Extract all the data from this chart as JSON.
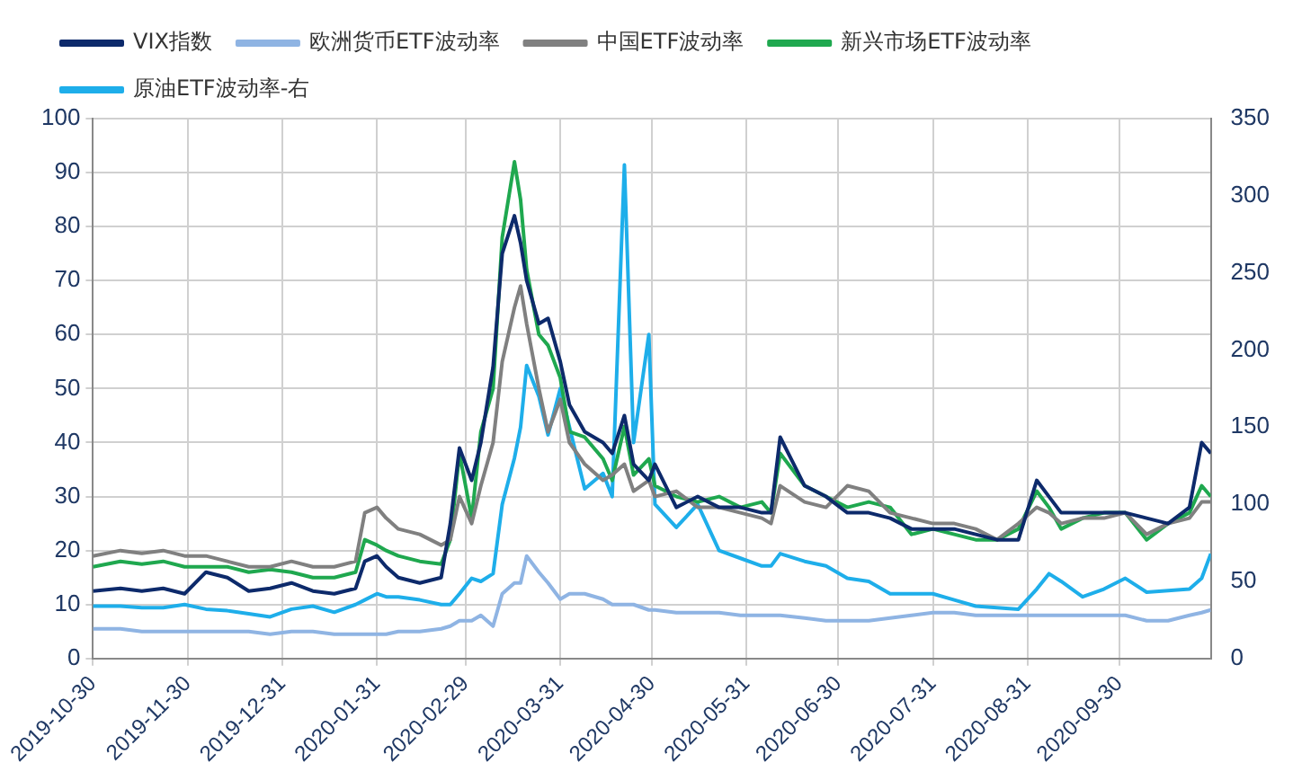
{
  "chart_data": {
    "type": "line",
    "legend": "top",
    "grid": true,
    "marker": "none",
    "line_style": "solid",
    "x": [
      "2019-10-30",
      "2019-11-08",
      "2019-11-15",
      "2019-11-22",
      "2019-11-29",
      "2019-12-06",
      "2019-12-13",
      "2019-12-20",
      "2019-12-27",
      "2020-01-03",
      "2020-01-10",
      "2020-01-17",
      "2020-01-24",
      "2020-01-27",
      "2020-01-31",
      "2020-02-03",
      "2020-02-07",
      "2020-02-14",
      "2020-02-21",
      "2020-02-24",
      "2020-02-27",
      "2020-03-02",
      "2020-03-05",
      "2020-03-09",
      "2020-03-12",
      "2020-03-16",
      "2020-03-18",
      "2020-03-20",
      "2020-03-24",
      "2020-03-27",
      "2020-03-31",
      "2020-04-03",
      "2020-04-08",
      "2020-04-14",
      "2020-04-17",
      "2020-04-21",
      "2020-04-24",
      "2020-04-29",
      "2020-05-01",
      "2020-05-08",
      "2020-05-15",
      "2020-05-22",
      "2020-05-29",
      "2020-06-05",
      "2020-06-08",
      "2020-06-11",
      "2020-06-19",
      "2020-06-26",
      "2020-07-03",
      "2020-07-10",
      "2020-07-17",
      "2020-07-24",
      "2020-07-31",
      "2020-08-07",
      "2020-08-14",
      "2020-08-21",
      "2020-08-28",
      "2020-09-03",
      "2020-09-07",
      "2020-09-11",
      "2020-09-18",
      "2020-09-25",
      "2020-10-02",
      "2020-10-09",
      "2020-10-16",
      "2020-10-23",
      "2020-10-27",
      "2020-10-30"
    ],
    "xlim": [
      "2019-10-30",
      "2020-10-30"
    ],
    "xticks": [
      "2019-10-30",
      "2019-11-30",
      "2019-12-31",
      "2020-01-31",
      "2020-02-29",
      "2020-03-31",
      "2020-04-30",
      "2020-05-31",
      "2020-06-30",
      "2020-07-31",
      "2020-08-31",
      "2020-09-30"
    ],
    "ylim": [
      0,
      100
    ],
    "yticks": [
      0,
      10,
      20,
      30,
      40,
      50,
      60,
      70,
      80,
      90,
      100
    ],
    "y2lim": [
      0,
      350
    ],
    "y2ticks": [
      0,
      50,
      100,
      150,
      200,
      250,
      300,
      350
    ],
    "series": [
      {
        "name": "VIX指数",
        "color": "#0d2a6b",
        "values": [
          12.5,
          13,
          12.5,
          13,
          12,
          16,
          15,
          12.5,
          13,
          14,
          12.5,
          12,
          13,
          18,
          19,
          17,
          15,
          14,
          15,
          25,
          39,
          33,
          40,
          54,
          75,
          82,
          77,
          70,
          62,
          63,
          55,
          47,
          42,
          40,
          38,
          45,
          36,
          33,
          36,
          28,
          30,
          28,
          28,
          27,
          27,
          41,
          32,
          30,
          27,
          27,
          26,
          24,
          24,
          24,
          23,
          22,
          22,
          33,
          30,
          27,
          27,
          27,
          27,
          26,
          25,
          28,
          40,
          38
        ]
      },
      {
        "name": "欧洲货币ETF波动率",
        "color": "#8fb4e3",
        "values": [
          5.5,
          5.5,
          5,
          5,
          5,
          5,
          5,
          5,
          4.5,
          5,
          5,
          4.5,
          4.5,
          4.5,
          4.5,
          4.5,
          5,
          5,
          5.5,
          6,
          7,
          7,
          8,
          6,
          12,
          14,
          14,
          19,
          16,
          14,
          11,
          12,
          12,
          11,
          10,
          10,
          10,
          9,
          9,
          8.5,
          8.5,
          8.5,
          8,
          8,
          8,
          8,
          7.5,
          7,
          7,
          7,
          7.5,
          8,
          8.5,
          8.5,
          8,
          8,
          8,
          8,
          8,
          8,
          8,
          8,
          8,
          7,
          7,
          8,
          8.5,
          9
        ]
      },
      {
        "name": "中国ETF波动率",
        "color": "#808080",
        "values": [
          19,
          20,
          19.5,
          20,
          19,
          19,
          18,
          17,
          17,
          18,
          17,
          17,
          18,
          27,
          28,
          26,
          24,
          23,
          21,
          22,
          30,
          25,
          32,
          40,
          55,
          65,
          69,
          62,
          50,
          42,
          48,
          40,
          36,
          33,
          34,
          36,
          31,
          33,
          30,
          31,
          28,
          28,
          27,
          26,
          25,
          32,
          29,
          28,
          32,
          31,
          27,
          26,
          25,
          25,
          24,
          22,
          25,
          28,
          27,
          25,
          26,
          26,
          27,
          23,
          25,
          26,
          29,
          29
        ]
      },
      {
        "name": "新兴市场ETF波动率",
        "color": "#1fa84f",
        "values": [
          17,
          18,
          17.5,
          18,
          17,
          17,
          17,
          16,
          16.5,
          16,
          15,
          15,
          16,
          22,
          21,
          20,
          19,
          18,
          17.5,
          22,
          38,
          26,
          42,
          50,
          78,
          92,
          85,
          72,
          60,
          58,
          52,
          42,
          41,
          37,
          33,
          43,
          34,
          37,
          32,
          30,
          29,
          30,
          28,
          29,
          27,
          38,
          32,
          30,
          28,
          29,
          28,
          23,
          24,
          23,
          22,
          22,
          24,
          31,
          28,
          24,
          26,
          27,
          27,
          22,
          25,
          27,
          32,
          30
        ]
      },
      {
        "name": "原油ETF波动率-右",
        "color": "#1eaeea",
        "axis": "y2",
        "values": [
          34,
          34,
          33,
          33,
          35,
          32,
          31,
          29,
          27,
          32,
          34,
          30,
          35,
          38,
          42,
          40,
          40,
          38,
          35,
          35,
          42,
          52,
          50,
          55,
          100,
          130,
          150,
          190,
          170,
          145,
          175,
          150,
          110,
          120,
          105,
          320,
          140,
          210,
          100,
          85,
          100,
          70,
          65,
          60,
          60,
          68,
          63,
          60,
          52,
          50,
          42,
          42,
          42,
          38,
          34,
          33,
          32,
          45,
          55,
          50,
          40,
          45,
          52,
          43,
          44,
          45,
          52,
          68
        ]
      }
    ]
  }
}
